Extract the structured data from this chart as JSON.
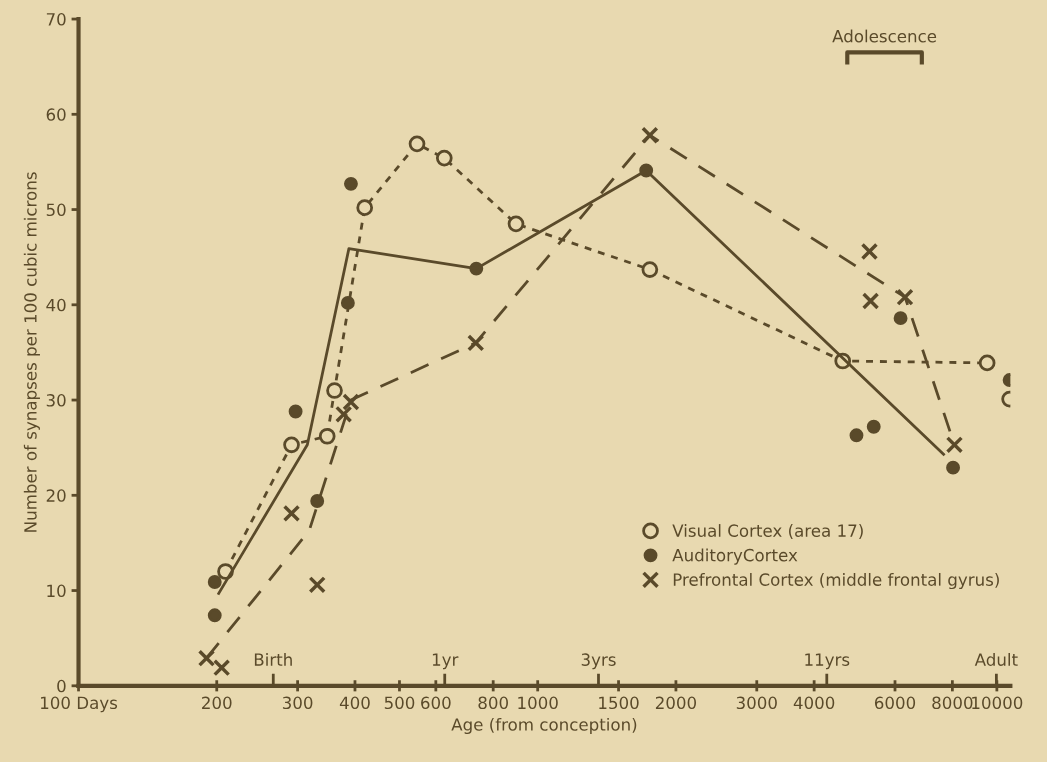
{
  "chart_data": {
    "type": "line",
    "xlabel": "Age (from conception)",
    "ylabel": "Number of synapses per 100 cubic microns",
    "log": "x",
    "xlim": [
      100,
      10700
    ],
    "xticks": [
      {
        "value": 100,
        "label": "100 Days"
      },
      200,
      300,
      400,
      500,
      600,
      800,
      1000,
      1500,
      2000,
      3000,
      4000,
      6000,
      8000,
      10000
    ],
    "ylim": [
      0,
      70
    ],
    "yticks": [
      0,
      10,
      20,
      30,
      40,
      50,
      60,
      70
    ],
    "grid": false,
    "legend": "lower right",
    "series": [
      {
        "name": "Visual Cortex (area 17)",
        "marker": "circle",
        "line_style": "dotted",
        "color": "#5a4a2a",
        "x": [
          209,
          291,
          348,
          361,
          420,
          546,
          626,
          897,
          1755,
          4616,
          9524,
          10000,
          10660
        ],
        "values": [
          12.0,
          25.3,
          26.2,
          31.0,
          50.2,
          56.9,
          55.4,
          48.5,
          43.7,
          34.1,
          33.9,
          null,
          30.1
        ]
      },
      {
        "name": "AuditoryCortex",
        "type": "scatter",
        "marker": "circle",
        "color": "#5a4a2a",
        "x": [
          198,
          198,
          297,
          331,
          386,
          392,
          735,
          1723,
          4946,
          5393,
          6170,
          8028,
          10660
        ],
        "values": [
          10.9,
          7.4,
          28.8,
          19.4,
          40.2,
          52.7,
          43.8,
          54.1,
          26.3,
          27.2,
          38.6,
          22.9,
          32.1
        ]
      },
      {
        "name": "Prefrontal Cortex (middle frontal gyrus)",
        "type": "scatter",
        "marker": "cross",
        "color": "#5a4a2a",
        "x": [
          190,
          205,
          291,
          331,
          378,
          392,
          733,
          1755,
          5279,
          5309,
          6309,
          8085
        ],
        "values": [
          2.9,
          1.9,
          18.1,
          10.6,
          28.5,
          29.8,
          36.0,
          57.8,
          45.6,
          40.4,
          40.8,
          25.3
        ]
      },
      {
        "marker": "none",
        "line_style": "solid",
        "color": "#5a4a2a",
        "x": [
          202,
          315,
          388,
          735,
          1723,
          7655
        ],
        "values": [
          9.7,
          25.3,
          45.9,
          43.8,
          54.1,
          24.3
        ]
      },
      {
        "marker": "none",
        "line_style": "dashed",
        "color": "#5a4a2a",
        "x": [
          190,
          318,
          392,
          733,
          1755,
          6309,
          8085
        ],
        "values": [
          2.9,
          16.3,
          30.0,
          36.0,
          57.8,
          40.8,
          25.3
        ]
      }
    ],
    "annotations": [
      "Birth",
      "1yr",
      "3yrs",
      "11yrs",
      "Adult",
      "Adolescence"
    ]
  }
}
